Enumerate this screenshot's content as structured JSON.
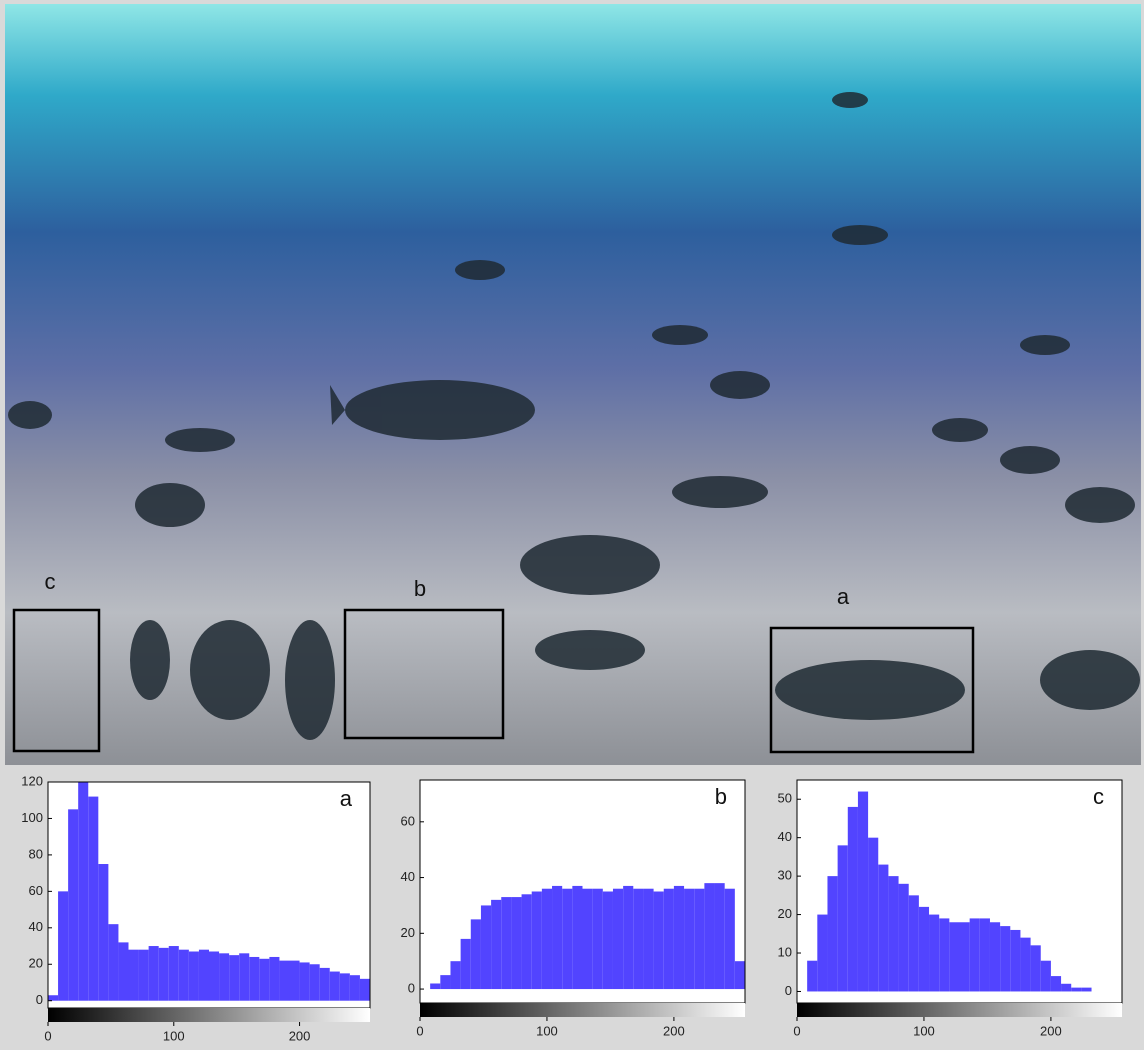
{
  "image": {
    "box_labels": [
      "c",
      "b",
      "a"
    ]
  },
  "chart_data": [
    {
      "type": "histogram",
      "label": "a",
      "color": "#5244ff",
      "bins": [
        0,
        8,
        16,
        24,
        32,
        40,
        48,
        56,
        64,
        72,
        80,
        88,
        96,
        104,
        112,
        120,
        128,
        136,
        144,
        152,
        160,
        168,
        176,
        184,
        192,
        200,
        208,
        216,
        224,
        232,
        240,
        248,
        256
      ],
      "values": [
        3,
        60,
        105,
        120,
        112,
        75,
        42,
        32,
        28,
        28,
        30,
        29,
        30,
        28,
        27,
        28,
        27,
        26,
        25,
        26,
        24,
        23,
        24,
        22,
        22,
        21,
        20,
        18,
        16,
        15,
        14,
        12
      ],
      "xlim": [
        0,
        256
      ],
      "ylim": [
        -4,
        120
      ],
      "xticks": [
        0,
        100,
        200
      ],
      "yticks": [
        0,
        20,
        40,
        60,
        80,
        100,
        120
      ]
    },
    {
      "type": "histogram",
      "label": "b",
      "color": "#5244ff",
      "bins": [
        0,
        8,
        16,
        24,
        32,
        40,
        48,
        56,
        64,
        72,
        80,
        88,
        96,
        104,
        112,
        120,
        128,
        136,
        144,
        152,
        160,
        168,
        176,
        184,
        192,
        200,
        208,
        216,
        224,
        232,
        240,
        248,
        256
      ],
      "values": [
        0,
        2,
        5,
        10,
        18,
        25,
        30,
        32,
        33,
        33,
        34,
        35,
        36,
        37,
        36,
        37,
        36,
        36,
        35,
        36,
        37,
        36,
        36,
        35,
        36,
        37,
        36,
        36,
        38,
        38,
        36,
        10
      ],
      "xlim": [
        0,
        256
      ],
      "ylim": [
        -5,
        75
      ],
      "xticks": [
        0,
        100,
        200
      ],
      "yticks": [
        0,
        20,
        40,
        60
      ]
    },
    {
      "type": "histogram",
      "label": "c",
      "color": "#5244ff",
      "bins": [
        0,
        8,
        16,
        24,
        32,
        40,
        48,
        56,
        64,
        72,
        80,
        88,
        96,
        104,
        112,
        120,
        128,
        136,
        144,
        152,
        160,
        168,
        176,
        184,
        192,
        200,
        208,
        216,
        224,
        232,
        240,
        248,
        256
      ],
      "values": [
        0,
        8,
        20,
        30,
        38,
        48,
        52,
        40,
        33,
        30,
        28,
        25,
        22,
        20,
        19,
        18,
        18,
        19,
        19,
        18,
        17,
        16,
        14,
        12,
        8,
        4,
        2,
        1,
        1,
        0,
        0,
        0
      ],
      "xlim": [
        0,
        256
      ],
      "ylim": [
        -3,
        55
      ],
      "xticks": [
        0,
        100,
        200
      ],
      "yticks": [
        0,
        10,
        20,
        30,
        40,
        50
      ]
    }
  ]
}
